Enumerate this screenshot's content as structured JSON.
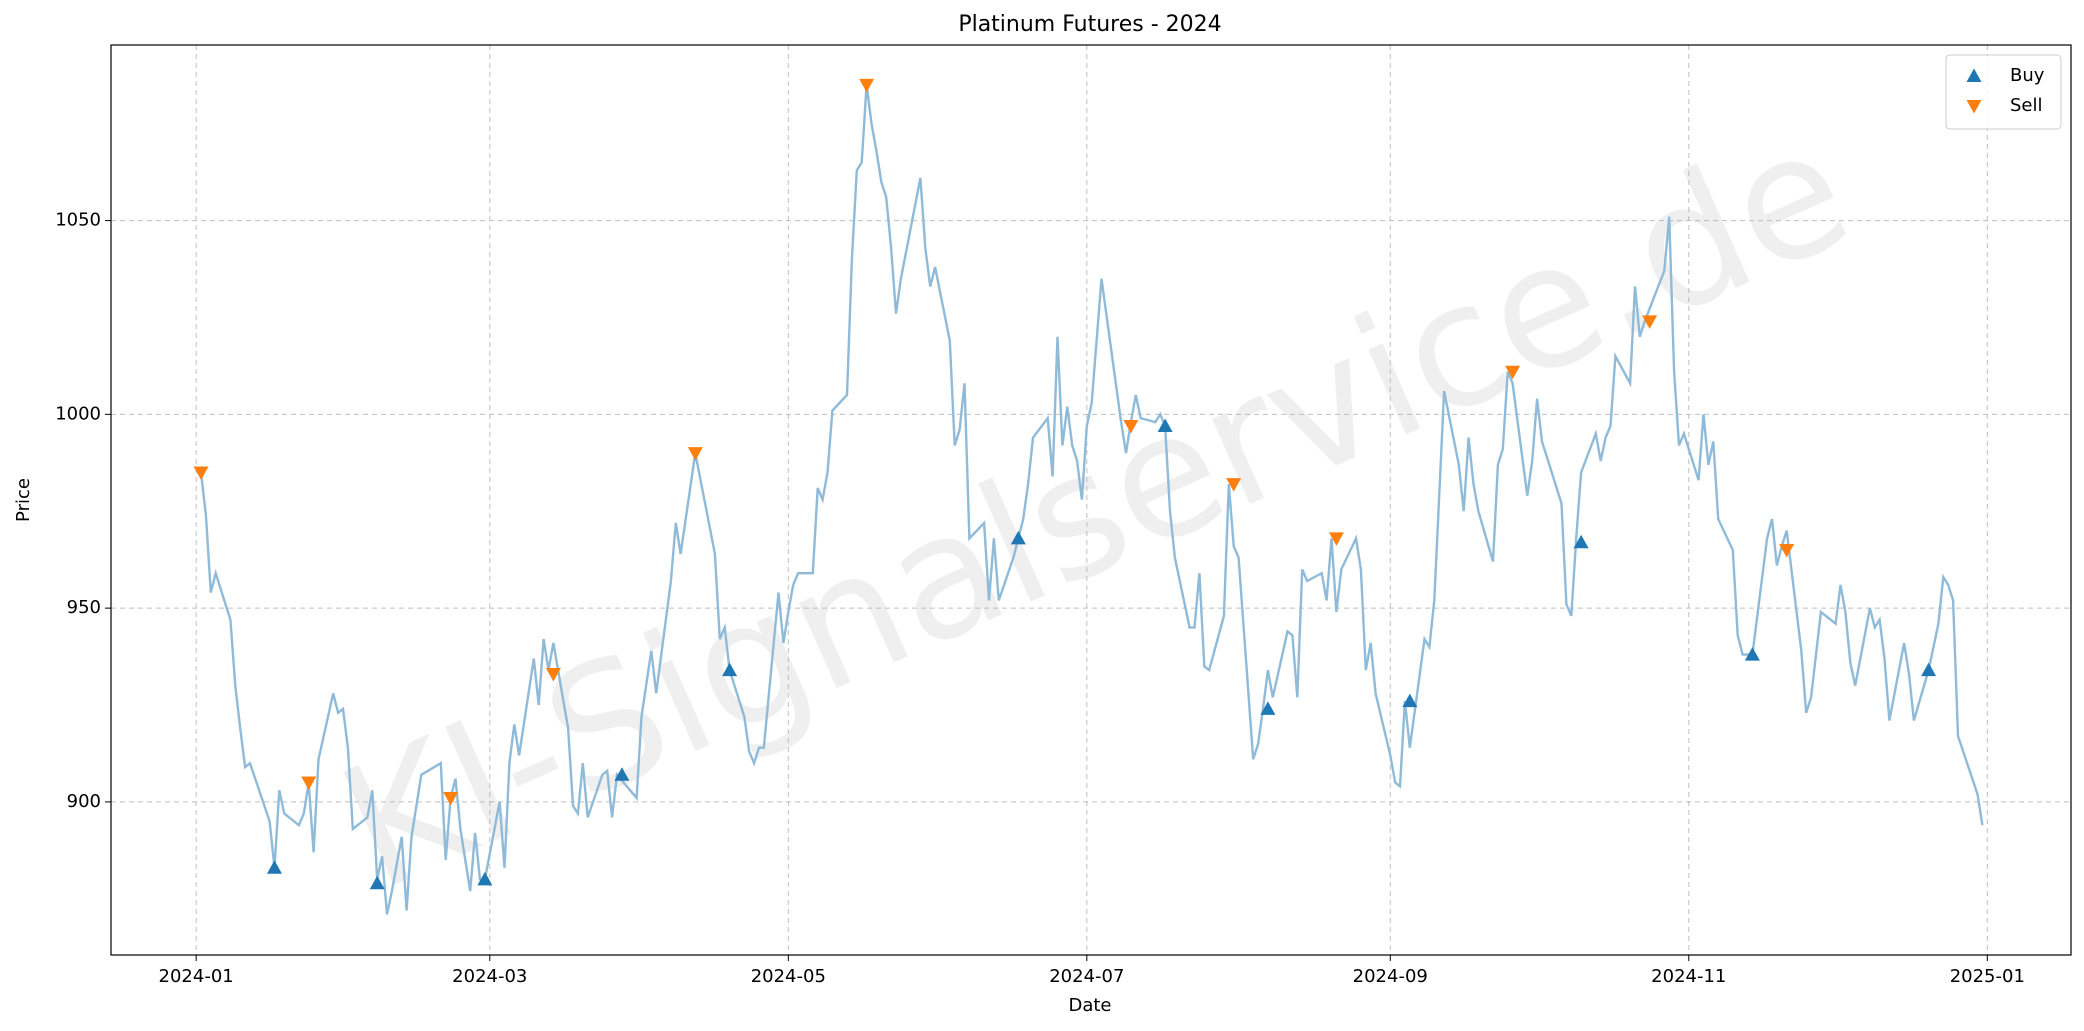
{
  "chart_data": {
    "type": "line",
    "title": "Platinum Futures - 2024",
    "xlabel": "Date",
    "ylabel": "Price",
    "watermark": "KI-Signalservice.de",
    "color": "#8fbbd9",
    "x": [
      1,
      2,
      3,
      4,
      7,
      8,
      9,
      10,
      11,
      15,
      16,
      17,
      18,
      21,
      22,
      23,
      24,
      25,
      28,
      29,
      30,
      31,
      32,
      35,
      36,
      37,
      38,
      39,
      40,
      42,
      43,
      44,
      46,
      50,
      51,
      52,
      53,
      54,
      56,
      57,
      58,
      59,
      62,
      63,
      64,
      65,
      66,
      69,
      70,
      71,
      72,
      73,
      76,
      77,
      78,
      79,
      80,
      83,
      84,
      85,
      86,
      90,
      91,
      93,
      94,
      97,
      98,
      99,
      102,
      106,
      107,
      108,
      109,
      112,
      113,
      114,
      115,
      116,
      119,
      120,
      121,
      122,
      123,
      126,
      127,
      128,
      129,
      130,
      133,
      134,
      135,
      136,
      137,
      138,
      139,
      140,
      141,
      142,
      143,
      144,
      148,
      149,
      150,
      151,
      154,
      155,
      156,
      157,
      158,
      161,
      162,
      163,
      164,
      167,
      168,
      169,
      170,
      171,
      174,
      175,
      176,
      177,
      178,
      179,
      180,
      181,
      182,
      183,
      185,
      189,
      190,
      191,
      192,
      193,
      196,
      197,
      198,
      199,
      200,
      203,
      204,
      205,
      206,
      207,
      210,
      211,
      212,
      213,
      216,
      217,
      218,
      219,
      220,
      223,
      224,
      225,
      226,
      227,
      230,
      231,
      232,
      233,
      234,
      237,
      238,
      239,
      240,
      241,
      244,
      245,
      246,
      247,
      248,
      251,
      252,
      253,
      255,
      258,
      259,
      260,
      261,
      262,
      265,
      266,
      267,
      268,
      269,
      272,
      273,
      274,
      275,
      276,
      279,
      280,
      281,
      282,
      283,
      286,
      287,
      288,
      289,
      290,
      293,
      294,
      295,
      296,
      300,
      301,
      302,
      303,
      304,
      307,
      308,
      309,
      310,
      311,
      314,
      315,
      316,
      318,
      321,
      322,
      323,
      324,
      325,
      328,
      329,
      330,
      332,
      335,
      336,
      337,
      338,
      339,
      342,
      343,
      344,
      345,
      346,
      349,
      350,
      351,
      354,
      356,
      357,
      358,
      359,
      360,
      364,
      365
    ],
    "values": [
      985,
      974,
      954,
      959,
      947,
      930,
      919,
      909,
      910,
      895,
      883,
      903,
      897,
      894,
      897,
      905,
      887,
      911,
      928,
      923,
      924,
      914,
      893,
      896,
      903,
      880,
      886,
      871,
      877,
      891,
      872,
      891,
      907,
      910,
      885,
      901,
      906,
      893,
      877,
      892,
      880,
      880,
      900,
      883,
      910,
      920,
      912,
      937,
      925,
      942,
      934,
      941,
      919,
      899,
      897,
      910,
      896,
      907,
      908,
      896,
      907,
      901,
      922,
      939,
      928,
      957,
      972,
      964,
      990,
      964,
      942,
      945,
      934,
      922,
      913,
      910,
      914,
      914,
      954,
      941,
      949,
      956,
      959,
      959,
      981,
      978,
      985,
      1001,
      1005,
      1040,
      1063,
      1065,
      1085,
      1075,
      1068,
      1060,
      1056,
      1043,
      1026,
      1035,
      1061,
      1043,
      1033,
      1038,
      1019,
      992,
      996,
      1008,
      968,
      972,
      952,
      968,
      952,
      963,
      968,
      973,
      982,
      994,
      999,
      984,
      1020,
      992,
      1002,
      992,
      988,
      978,
      997,
      1003,
      1035,
      998,
      990,
      998,
      1005,
      999,
      998,
      1000,
      997,
      975,
      963,
      945,
      945,
      959,
      935,
      934,
      948,
      982,
      966,
      963,
      911,
      915,
      924,
      934,
      927,
      944,
      943,
      927,
      960,
      957,
      959,
      952,
      968,
      949,
      960,
      968,
      960,
      934,
      941,
      928,
      912,
      905,
      904,
      926,
      914,
      942,
      940,
      952,
      1006,
      987,
      975,
      994,
      982,
      975,
      962,
      987,
      991,
      1011,
      1008,
      979,
      988,
      1004,
      993,
      989,
      977,
      951,
      948,
      968,
      985,
      995,
      988,
      994,
      997,
      1015,
      1008,
      1033,
      1020,
      1024,
      1037,
      1051,
      1011,
      992,
      995,
      983,
      1000,
      987,
      993,
      973,
      965,
      943,
      938,
      938,
      968,
      973,
      961,
      966,
      970,
      939,
      923,
      927,
      949,
      946,
      956,
      949,
      936,
      930,
      950,
      945,
      947,
      937,
      921,
      941,
      933,
      921,
      934,
      946,
      958,
      956,
      952,
      917,
      902,
      894
    ],
    "series": [
      {
        "name": "Buy",
        "color": "#1f77b4",
        "marker": "up",
        "x": [
          16,
          37,
          59,
          87,
          109,
          168,
          198,
          219,
          248,
          283,
          318,
          354
        ],
        "values": [
          883,
          879,
          880,
          907,
          934,
          968,
          997,
          924,
          926,
          967,
          938,
          934
        ]
      },
      {
        "name": "Sell",
        "color": "#ff7f0e",
        "marker": "down",
        "x": [
          1,
          23,
          52,
          73,
          102,
          137,
          191,
          212,
          233,
          269,
          297,
          325
        ],
        "values": [
          985,
          905,
          901,
          933,
          990,
          1085,
          997,
          982,
          968,
          1011,
          1024,
          965
        ]
      }
    ],
    "xlim": [
      -17.4,
      383.1
    ],
    "xticks": [
      {
        "value": 0,
        "label": "2024-01"
      },
      {
        "value": 60,
        "label": "2024-03"
      },
      {
        "value": 121,
        "label": "2024-05"
      },
      {
        "value": 182,
        "label": "2024-07"
      },
      {
        "value": 244,
        "label": "2024-09"
      },
      {
        "value": 305,
        "label": "2024-11"
      },
      {
        "value": 366,
        "label": "2025-01"
      }
    ],
    "ylim": [
      860.5,
      1095.3
    ],
    "yticks": [
      900,
      950,
      1000,
      1050
    ],
    "grid": true,
    "legend": "upper right"
  }
}
